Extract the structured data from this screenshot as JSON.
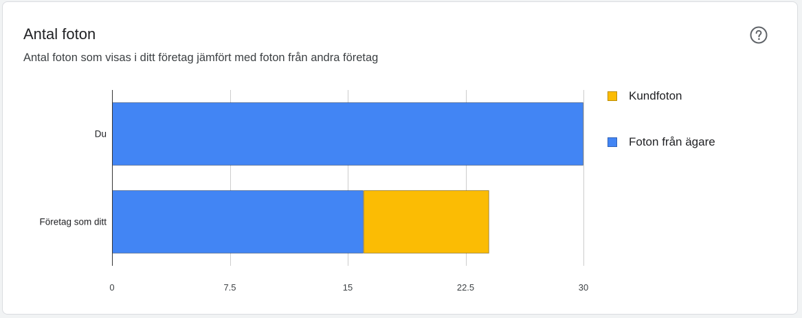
{
  "card": {
    "title": "Antal foton",
    "subtitle": "Antal foton som visas i ditt företag jämfört med foton från andra företag"
  },
  "help": {
    "icon": "help-circle-icon"
  },
  "colors": {
    "owner": "#4285f4",
    "customer": "#fbbc04",
    "grid": "#cccccc",
    "axis": "#333333"
  },
  "legend": [
    {
      "label": "Kundfoton",
      "color": "#fbbc04"
    },
    {
      "label": "Foton från ägare",
      "color": "#4285f4"
    }
  ],
  "chart_data": {
    "type": "bar",
    "orientation": "horizontal",
    "stacked": true,
    "categories": [
      "Du",
      "Företag som ditt"
    ],
    "series": [
      {
        "name": "Foton från ägare",
        "values": [
          30,
          16
        ],
        "color": "#4285f4"
      },
      {
        "name": "Kundfoton",
        "values": [
          0,
          8
        ],
        "color": "#fbbc04"
      }
    ],
    "xlim": [
      0,
      30
    ],
    "xticks": [
      0,
      7.5,
      15,
      22.5,
      30
    ],
    "xtick_labels": [
      "0",
      "7.5",
      "15",
      "22.5",
      "30"
    ],
    "grid": true,
    "legend_position": "right",
    "title": "",
    "xlabel": "",
    "ylabel": ""
  }
}
